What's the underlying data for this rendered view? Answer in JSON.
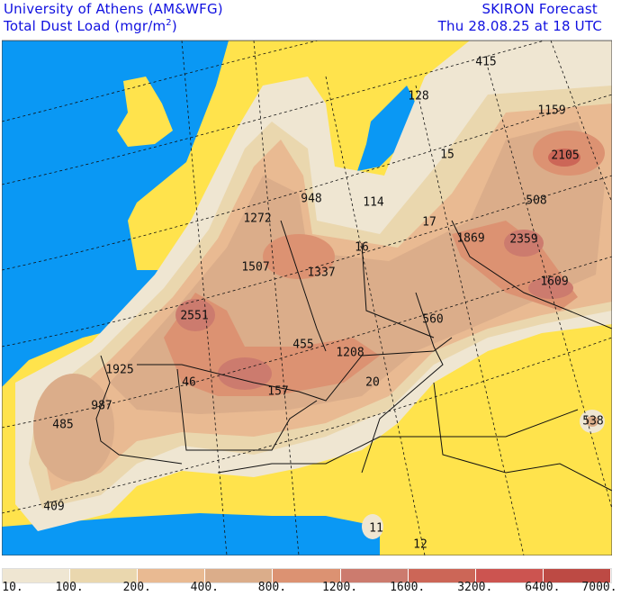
{
  "header": {
    "institution": "University of Athens (AM&WFG)",
    "product": "Total Dust Load (mgr/m",
    "product_sup": "2",
    "product_close": ")",
    "model": "SKIRON Forecast",
    "valid_time": "Thu 28.08.25 at 18 UTC"
  },
  "colors": {
    "ocean": "#0a98f4",
    "no_dust_land": "#ffe34c",
    "borders": "#111111"
  },
  "legend": {
    "ticks": [
      "10.",
      "100.",
      "200.",
      "400.",
      "800.",
      "1200.",
      "1600.",
      "3200.",
      "6400.",
      "7000."
    ],
    "colors": [
      "#efe6d2",
      "#ead7ae",
      "#e9ba92",
      "#dbad8a",
      "#dc9272",
      "#cc7b6e",
      "#cc6657",
      "#cc5450",
      "#bd4a44"
    ]
  },
  "map_labels": [
    "415",
    "128",
    "1159",
    "15",
    "2105",
    "114",
    "948",
    "1272",
    "17",
    "1869",
    "2359",
    "508",
    "16",
    "1507",
    "1337",
    "1609",
    "2551",
    "560",
    "455",
    "1208",
    "1925",
    "46",
    "157",
    "20",
    "987",
    "485",
    "538",
    "409",
    "11",
    "12"
  ]
}
